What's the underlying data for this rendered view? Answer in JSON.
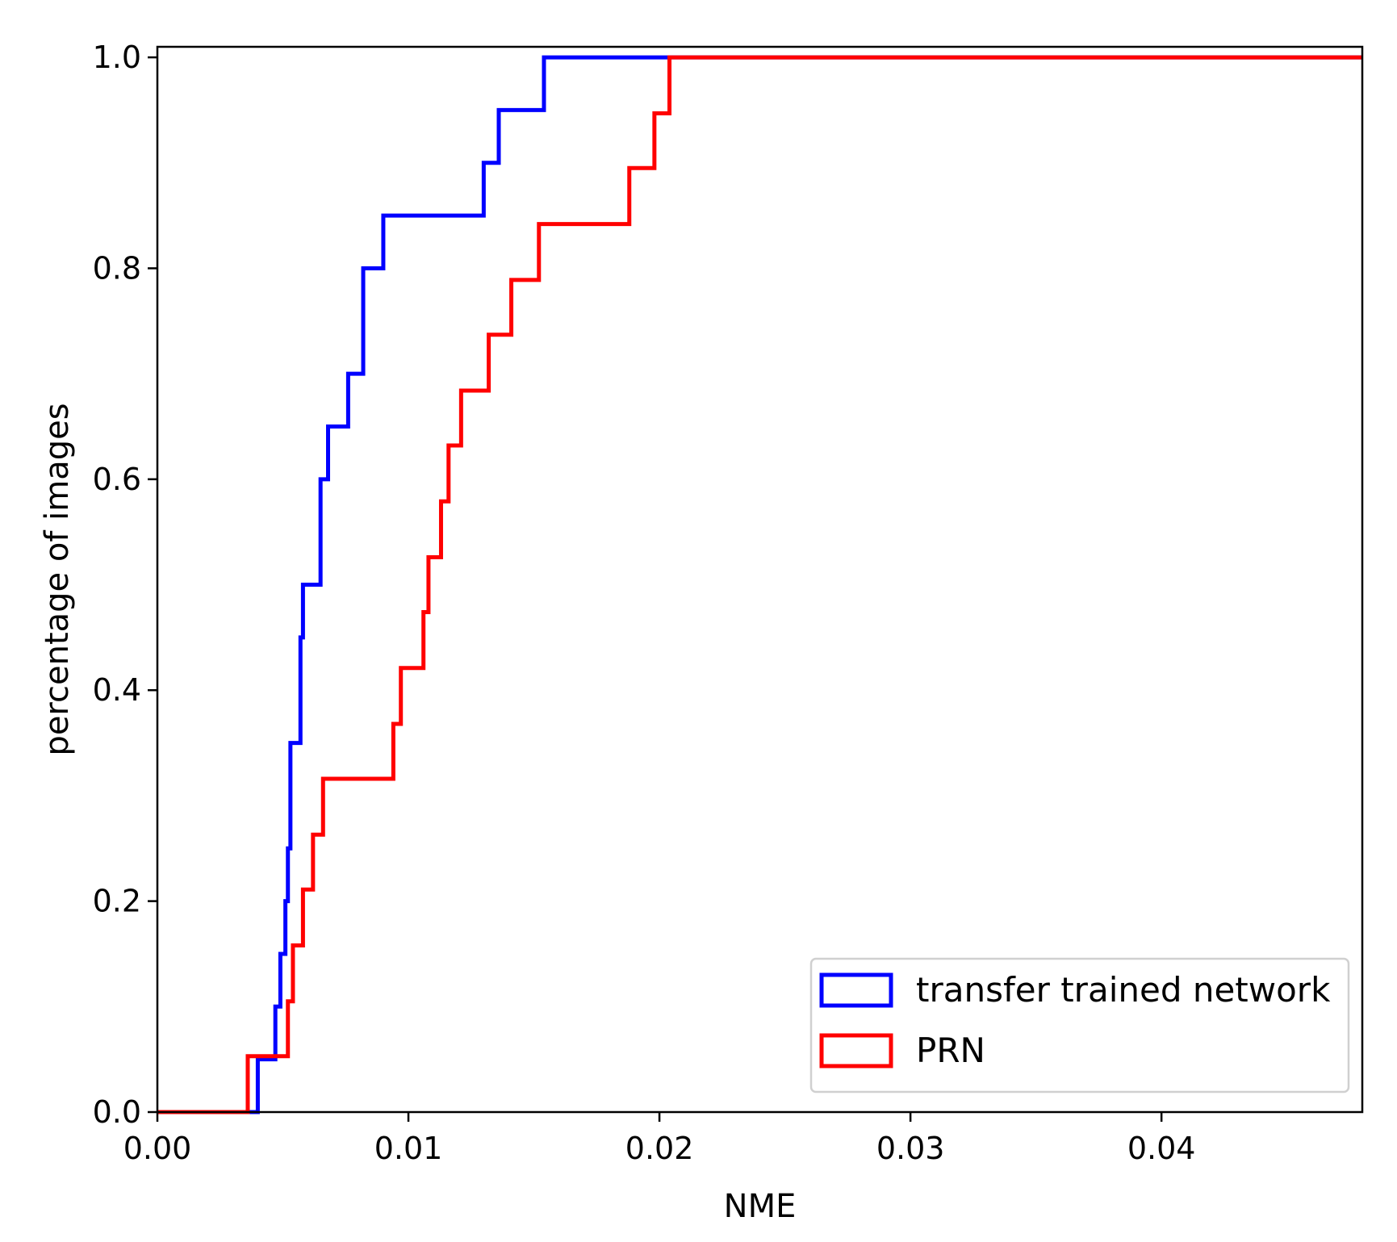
{
  "chart_data": {
    "type": "line",
    "step": true,
    "xlabel": "NME",
    "ylabel": "percentage of images",
    "xlim": [
      0.0,
      0.048
    ],
    "ylim": [
      0.0,
      1.01
    ],
    "xticks": [
      "0.00",
      "0.01",
      "0.02",
      "0.03",
      "0.04"
    ],
    "xtick_values": [
      0.0,
      0.01,
      0.02,
      0.03,
      0.04
    ],
    "yticks": [
      "0.0",
      "0.2",
      "0.4",
      "0.6",
      "0.8",
      "1.0"
    ],
    "ytick_values": [
      0.0,
      0.2,
      0.4,
      0.6,
      0.8,
      1.0
    ],
    "grid": false,
    "legend_position": "lower-right",
    "series": [
      {
        "name": "transfer trained network",
        "color": "#0000ff",
        "x": [
          0.0,
          0.004,
          0.0047,
          0.0049,
          0.0051,
          0.0052,
          0.0053,
          0.0055,
          0.0057,
          0.0058,
          0.0065,
          0.0068,
          0.0076,
          0.0082,
          0.009,
          0.013,
          0.0136,
          0.0154,
          0.0205,
          0.048
        ],
        "y": [
          0.0,
          0.05,
          0.1,
          0.15,
          0.2,
          0.25,
          0.35,
          0.35,
          0.45,
          0.5,
          0.6,
          0.65,
          0.7,
          0.8,
          0.85,
          0.9,
          0.95,
          1.0,
          1.0,
          1.0
        ]
      },
      {
        "name": "PRN",
        "color": "#ff0000",
        "x": [
          0.0,
          0.0036,
          0.0052,
          0.0054,
          0.0058,
          0.0062,
          0.0066,
          0.0072,
          0.0094,
          0.0097,
          0.0106,
          0.0108,
          0.0113,
          0.0116,
          0.0121,
          0.0132,
          0.0141,
          0.0152,
          0.0188,
          0.0198,
          0.0204,
          0.048
        ],
        "y": [
          0.0,
          0.053,
          0.105,
          0.158,
          0.211,
          0.263,
          0.316,
          0.316,
          0.368,
          0.421,
          0.474,
          0.526,
          0.579,
          0.632,
          0.684,
          0.737,
          0.789,
          0.842,
          0.895,
          0.947,
          1.0,
          1.0
        ]
      }
    ]
  }
}
